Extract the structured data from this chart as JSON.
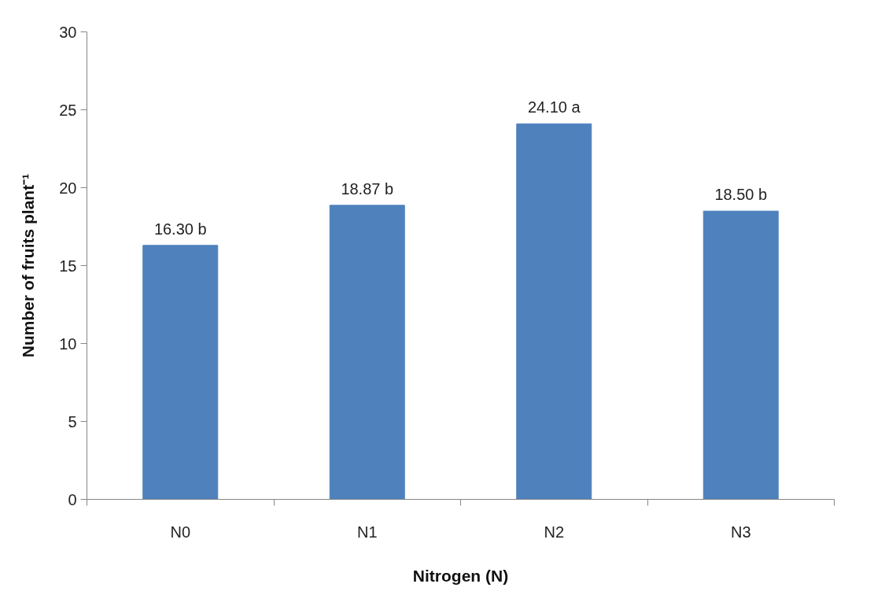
{
  "chart_data": {
    "type": "bar",
    "xlabel": "Nitrogen (N)",
    "ylabel": "Number of fruits plant⁻¹",
    "categories": [
      "N0",
      "N1",
      "N2",
      "N3"
    ],
    "values": [
      16.3,
      18.87,
      24.1,
      18.5
    ],
    "value_labels": [
      "16.30 b",
      "18.87 b",
      "24.10 a",
      "18.50 b"
    ],
    "color": "#4f81bd",
    "ylim": [
      0,
      30
    ],
    "yticks": [
      0,
      5,
      10,
      15,
      20,
      25,
      30
    ],
    "grid": false
  }
}
